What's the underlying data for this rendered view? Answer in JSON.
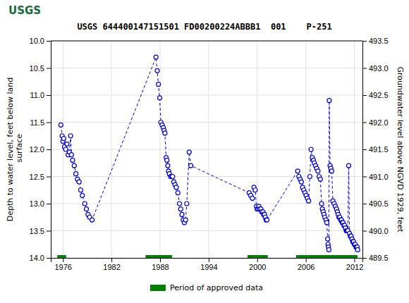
{
  "chart_data": {
    "type": "line",
    "title": "USGS 644400147151501 FD00200224ABBB1  001    P-251",
    "annotations": [
      "USGS"
    ],
    "y_label": "Depth to water level, feet below land\n surface",
    "y2_label": "Groundwater level above NGVD 1929, feet",
    "xlim": [
      1974.5,
      2013
    ],
    "xticks": [
      1976,
      1982,
      1988,
      1994,
      2000,
      2006,
      2012
    ],
    "ylim": [
      14.0,
      10.0
    ],
    "yticks": [
      {
        "value": 10.0,
        "label": "10.0"
      },
      10.5,
      {
        "value": 11.0,
        "label": "11.0"
      },
      11.5,
      {
        "value": 12.0,
        "label": "12.0"
      },
      12.5,
      {
        "value": 13.0,
        "label": "13.0"
      },
      13.5,
      {
        "value": 14.0,
        "label": "14.0"
      }
    ],
    "y2lim": [
      489.5,
      493.5
    ],
    "y2ticks": [
      493.5,
      {
        "value": 493.0,
        "label": "493.0"
      },
      492.5,
      {
        "value": 492.0,
        "label": "492.0"
      },
      491.5,
      {
        "value": 491.0,
        "label": "491.0"
      },
      490.5,
      {
        "value": 490.0,
        "label": "490.0"
      },
      489.5
    ],
    "grid": true,
    "legend": "bottom",
    "series": [
      {
        "type": "line",
        "color": "#0000cc",
        "marker": "circle",
        "line_style": "dashed",
        "x": [
          1975.75,
          1975.9,
          1976.0,
          1976.1,
          1976.2,
          1976.35,
          1976.5,
          1976.65,
          1976.8,
          1976.95,
          1977.05,
          1977.2,
          1977.4,
          1977.6,
          1977.8,
          1978.0,
          1978.2,
          1978.4,
          1978.7,
          1978.9,
          1979.1,
          1979.3,
          1979.6,
          1987.5,
          1987.65,
          1987.8,
          1987.95,
          1988.1,
          1988.25,
          1988.4,
          1988.5,
          1988.6,
          1988.75,
          1988.85,
          1988.95,
          1989.05,
          1989.15,
          1989.3,
          1989.45,
          1989.55,
          1989.7,
          1989.85,
          1990.0,
          1990.2,
          1990.4,
          1990.55,
          1990.7,
          1990.85,
          1991.0,
          1991.15,
          1991.3,
          1991.6,
          1991.8,
          1999.0,
          1999.2,
          1999.4,
          1999.6,
          1999.75,
          1999.9,
          2000.0,
          2000.1,
          2000.2,
          2000.3,
          2000.45,
          2000.55,
          2000.7,
          2000.8,
          2000.9,
          2001.0,
          2001.1,
          2001.2,
          2005.0,
          2005.15,
          2005.3,
          2005.45,
          2005.6,
          2005.75,
          2005.9,
          2006.05,
          2006.2,
          2006.35,
          2006.5,
          2006.65,
          2006.8,
          2006.95,
          2007.05,
          2007.2,
          2007.35,
          2007.5,
          2007.65,
          2007.8,
          2007.95,
          2008.05,
          2008.15,
          2008.25,
          2008.35,
          2008.5,
          2008.6,
          2008.7,
          2008.75,
          2008.8,
          2008.85,
          2008.9,
          2009.0,
          2009.1,
          2009.2,
          2009.35,
          2009.5,
          2009.65,
          2009.8,
          2009.9,
          2010.0,
          2010.1,
          2010.2,
          2010.3,
          2010.4,
          2010.5,
          2010.6,
          2010.7,
          2010.8,
          2010.9,
          2011.0,
          2011.05,
          2011.1,
          2011.2,
          2011.3,
          2011.4,
          2011.5,
          2011.6,
          2011.7,
          2011.8,
          2011.9,
          2012.0,
          2012.05,
          2012.1,
          2012.2,
          2012.25,
          2012.3,
          2012.35,
          2012.4
        ],
        "values": [
          11.55,
          11.75,
          11.85,
          11.8,
          11.95,
          12.0,
          11.9,
          12.1,
          12.05,
          11.75,
          12.1,
          12.2,
          12.3,
          12.45,
          12.55,
          12.6,
          12.75,
          12.85,
          13.0,
          13.1,
          13.2,
          13.25,
          13.3,
          10.3,
          10.55,
          10.8,
          11.05,
          11.5,
          11.55,
          11.6,
          11.65,
          11.7,
          12.15,
          12.2,
          12.3,
          12.4,
          12.45,
          12.5,
          12.5,
          12.5,
          12.6,
          12.65,
          12.7,
          12.8,
          13.0,
          13.1,
          13.2,
          13.3,
          13.35,
          13.3,
          13.0,
          12.05,
          12.3,
          12.8,
          12.85,
          12.9,
          12.7,
          12.75,
          13.05,
          13.1,
          13.1,
          13.05,
          13.1,
          13.1,
          13.15,
          13.15,
          13.2,
          13.2,
          13.25,
          13.3,
          13.3,
          12.4,
          12.5,
          12.55,
          12.6,
          12.7,
          12.75,
          12.8,
          12.85,
          12.9,
          12.95,
          12.5,
          12.0,
          12.15,
          12.2,
          12.25,
          12.3,
          12.35,
          12.4,
          12.5,
          12.55,
          13.0,
          13.1,
          13.15,
          13.2,
          13.25,
          13.3,
          13.35,
          13.65,
          13.75,
          13.8,
          13.85,
          11.1,
          12.3,
          12.35,
          12.4,
          12.95,
          13.0,
          13.05,
          13.1,
          13.15,
          13.2,
          13.25,
          13.25,
          13.3,
          13.3,
          13.35,
          13.35,
          13.4,
          13.4,
          13.45,
          13.5,
          13.5,
          13.5,
          13.5,
          12.3,
          13.55,
          13.6,
          13.6,
          13.65,
          13.7,
          13.7,
          13.75,
          13.75,
          13.75,
          13.8,
          13.8,
          13.8,
          13.8,
          13.85
        ]
      },
      {
        "type": "span",
        "name": "Period of approved data",
        "color": "#008000",
        "x": [
          [
            1975.3,
            1976.4
          ],
          [
            1986.2,
            1989.5
          ],
          [
            1998.8,
            2001.3
          ],
          [
            2004.8,
            2012.4
          ]
        ]
      }
    ]
  }
}
